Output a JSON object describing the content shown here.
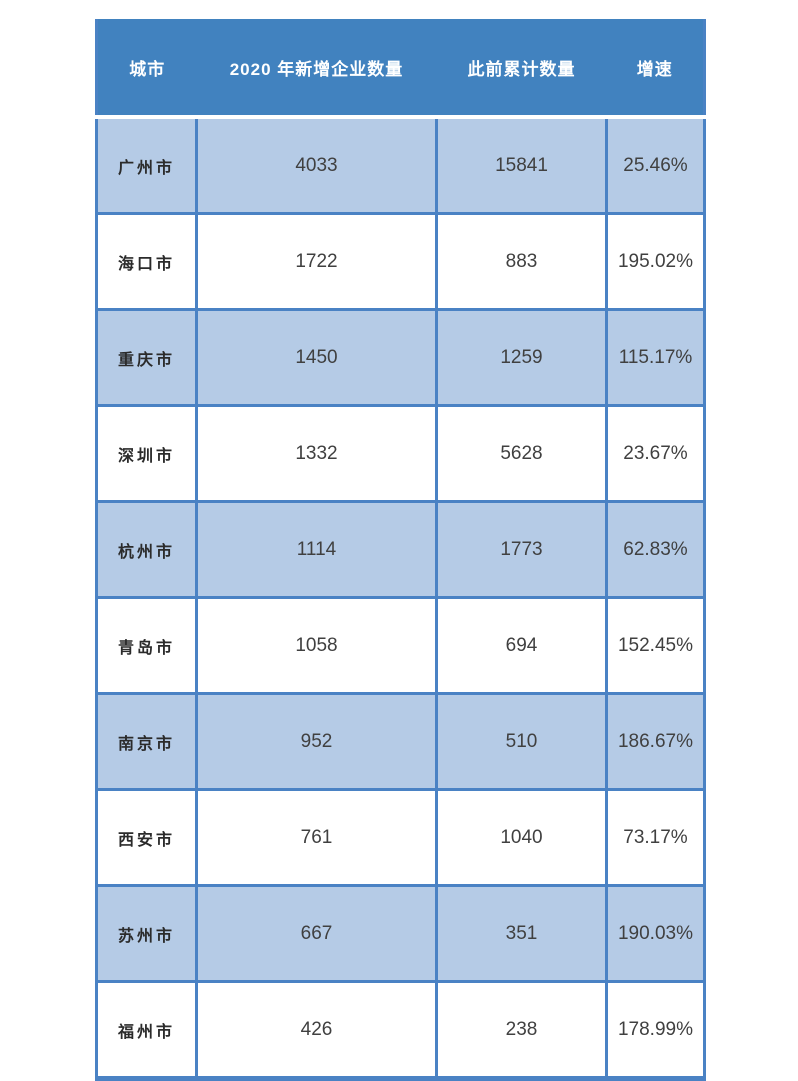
{
  "chart_data": {
    "type": "table",
    "title": "",
    "columns": [
      {
        "key": "city",
        "label": "城市"
      },
      {
        "key": "new2020",
        "label": "2020 年新增企业数量"
      },
      {
        "key": "cumulative",
        "label": "此前累计数量"
      },
      {
        "key": "growth",
        "label": "增速"
      }
    ],
    "rows": [
      {
        "city": "广州市",
        "new2020": "4033",
        "cumulative": "15841",
        "growth": "25.46%"
      },
      {
        "city": "海口市",
        "new2020": "1722",
        "cumulative": "883",
        "growth": "195.02%"
      },
      {
        "city": "重庆市",
        "new2020": "1450",
        "cumulative": "1259",
        "growth": "115.17%"
      },
      {
        "city": "深圳市",
        "new2020": "1332",
        "cumulative": "5628",
        "growth": "23.67%"
      },
      {
        "city": "杭州市",
        "new2020": "1114",
        "cumulative": "1773",
        "growth": "62.83%"
      },
      {
        "city": "青岛市",
        "new2020": "1058",
        "cumulative": "694",
        "growth": "152.45%"
      },
      {
        "city": "南京市",
        "new2020": "952",
        "cumulative": "510",
        "growth": "186.67%"
      },
      {
        "city": "西安市",
        "new2020": "761",
        "cumulative": "1040",
        "growth": "73.17%"
      },
      {
        "city": "苏州市",
        "new2020": "667",
        "cumulative": "351",
        "growth": "190.03%"
      },
      {
        "city": "福州市",
        "new2020": "426",
        "cumulative": "238",
        "growth": "178.99%"
      }
    ],
    "layout": {
      "banded_rows": true,
      "band_pattern": "odd-rows-shaded"
    }
  },
  "colors": {
    "header_bg": "#4182BF",
    "band_bg": "#B5CBE6",
    "border": "#4A82C4",
    "header_text": "#FFFFFF",
    "body_text": "#404040"
  }
}
